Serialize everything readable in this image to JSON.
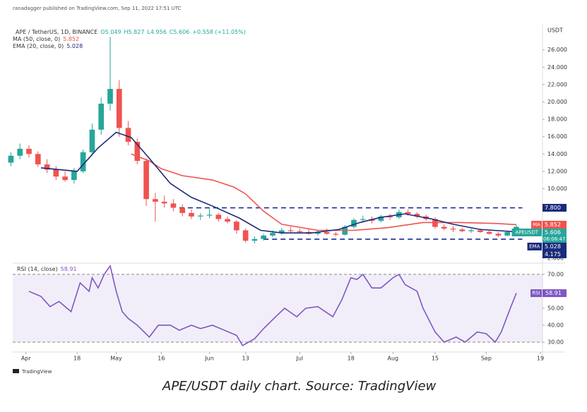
{
  "header": {
    "published": "ranadagger published on TradingView.com, Sep 11, 2022 17:51 UTC",
    "symbol": "APE / TetherUS, 1D, BINANCE",
    "ohlc": [
      "O5.049",
      "H5.827",
      "L4.956",
      "C5.606",
      "+0.558 (+11.05%)"
    ],
    "ma_legend": "MA (50, close, 0)",
    "ma_value": "5.852",
    "ema_legend": "EMA (20, close, 0)",
    "ema_value": "5.028"
  },
  "chart_data": [
    {
      "type": "candlestick",
      "currency": "USDT",
      "up_color": "#26a69a",
      "down_color": "#ef5350",
      "x": [
        -5,
        -2,
        1,
        4,
        7,
        10,
        13,
        16,
        19,
        22,
        25,
        28,
        31,
        34,
        37,
        40,
        43,
        46,
        49,
        52,
        55,
        58,
        61,
        64,
        67,
        70,
        73,
        76,
        79,
        82,
        85,
        88,
        91,
        94,
        97,
        100,
        103,
        106,
        109,
        112,
        115,
        118,
        121,
        124,
        127,
        130,
        133,
        136,
        139,
        142,
        145,
        148,
        151,
        154,
        157,
        160,
        163
      ],
      "open": [
        13.0,
        13.8,
        14.6,
        14.0,
        12.8,
        12.2,
        11.4,
        11.0,
        12.0,
        14.2,
        16.8,
        19.8,
        21.5,
        17.0,
        15.4,
        13.2,
        8.8,
        8.5,
        8.3,
        7.8,
        7.2,
        6.8,
        6.9,
        7.0,
        6.5,
        6.2,
        5.2,
        4.0,
        4.2,
        4.6,
        4.9,
        5.2,
        5.1,
        5.0,
        4.8,
        5.0,
        4.8,
        4.7,
        5.6,
        6.4,
        6.5,
        6.3,
        6.8,
        6.7,
        7.3,
        7.1,
        6.8,
        6.5,
        5.6,
        5.4,
        5.3,
        5.1,
        5.2,
        5.0,
        4.8,
        4.6,
        5.049
      ],
      "high": [
        14.2,
        15.2,
        15.0,
        14.3,
        13.4,
        12.6,
        12.0,
        12.4,
        14.5,
        17.5,
        20.5,
        27.5,
        22.5,
        17.8,
        15.8,
        13.5,
        9.5,
        9.2,
        8.8,
        8.2,
        7.6,
        7.2,
        7.8,
        7.2,
        6.8,
        6.4,
        5.4,
        4.5,
        4.8,
        5.2,
        5.5,
        5.6,
        5.4,
        5.3,
        5.2,
        5.4,
        5.0,
        5.8,
        6.6,
        6.9,
        6.8,
        7.0,
        7.1,
        7.6,
        7.6,
        7.3,
        7.0,
        6.7,
        5.9,
        5.7,
        5.5,
        5.4,
        5.4,
        5.2,
        5.0,
        5.1,
        5.827
      ],
      "low": [
        12.6,
        13.4,
        13.6,
        12.5,
        11.8,
        11.0,
        10.8,
        10.6,
        11.8,
        13.8,
        16.2,
        19.0,
        16.0,
        15.0,
        12.8,
        8.0,
        6.2,
        7.8,
        7.4,
        6.8,
        6.5,
        6.4,
        6.6,
        6.2,
        6.0,
        4.8,
        3.8,
        3.7,
        4.0,
        4.4,
        4.7,
        4.9,
        4.8,
        4.7,
        4.6,
        4.7,
        4.5,
        4.6,
        5.4,
        6.1,
        6.0,
        6.1,
        6.4,
        6.5,
        6.9,
        6.6,
        6.3,
        5.4,
        5.2,
        5.0,
        5.0,
        4.9,
        4.9,
        4.7,
        4.4,
        4.5,
        4.956
      ],
      "close": [
        13.8,
        14.6,
        14.0,
        12.8,
        12.2,
        11.4,
        11.0,
        12.0,
        14.2,
        16.8,
        19.8,
        21.5,
        17.0,
        15.4,
        13.2,
        8.8,
        8.5,
        8.3,
        7.8,
        7.2,
        6.8,
        6.9,
        7.0,
        6.5,
        6.2,
        5.2,
        4.0,
        4.2,
        4.6,
        4.9,
        5.2,
        5.1,
        5.0,
        4.8,
        5.0,
        4.8,
        4.7,
        5.6,
        6.4,
        6.5,
        6.3,
        6.8,
        6.7,
        7.3,
        7.1,
        6.8,
        6.5,
        5.6,
        5.4,
        5.3,
        5.1,
        5.2,
        5.0,
        4.8,
        4.6,
        5.0,
        5.606
      ],
      "series": [
        {
          "name": "MA",
          "color": "#ef5350",
          "x": [
            35,
            41,
            45,
            52,
            62,
            69,
            73,
            79,
            85,
            97,
            109,
            120,
            132,
            144,
            156,
            163
          ],
          "values": [
            14.0,
            13.2,
            12.3,
            11.5,
            11.0,
            10.2,
            9.4,
            7.4,
            5.9,
            5.2,
            5.2,
            5.5,
            6.1,
            6.1,
            6.0,
            5.852
          ]
        },
        {
          "name": "EMA",
          "color": "#1a2a7a",
          "x": [
            5,
            17,
            24,
            30,
            35,
            41,
            48,
            55,
            62,
            71,
            78,
            85,
            95,
            104,
            111,
            118,
            126,
            135,
            142,
            151,
            163
          ],
          "values": [
            12.4,
            12.0,
            14.7,
            16.5,
            15.9,
            13.5,
            10.6,
            9.0,
            8.0,
            6.6,
            5.2,
            4.9,
            4.9,
            5.3,
            6.1,
            6.7,
            7.1,
            6.5,
            5.9,
            5.3,
            5.028
          ]
        }
      ],
      "levels": [
        {
          "value": 7.8,
          "x_start": 51,
          "x_end": 165
        },
        {
          "value": 4.175,
          "x_start": 79,
          "x_end": 165
        }
      ],
      "price_tags": [
        {
          "value": 7.8,
          "label": "7.800",
          "color": "#1a2a7a"
        },
        {
          "name": "MA",
          "value": 5.852,
          "label": "5.852",
          "color": "#ef5350"
        },
        {
          "name": "APEUSDT",
          "value": 5.606,
          "label": "5.606",
          "countdown": "06:08:47",
          "color": "#26a69a"
        },
        {
          "name": "EMA",
          "value": 5.028,
          "label": "5.028",
          "color": "#1a2a7a"
        },
        {
          "value": 4.175,
          "label": "4.175",
          "color": "#1a2a7a"
        }
      ],
      "xlim": [
        -4.4,
        171.7
      ],
      "xticks": [
        {
          "value": 0,
          "label": "Apr"
        },
        {
          "value": 17,
          "label": "18"
        },
        {
          "value": 30,
          "label": "May"
        },
        {
          "value": 45,
          "label": "16"
        },
        {
          "value": 61,
          "label": "Jun"
        },
        {
          "value": 73,
          "label": "13"
        },
        {
          "value": 91,
          "label": "Jul"
        },
        {
          "value": 108,
          "label": "18"
        },
        {
          "value": 122,
          "label": "Aug"
        },
        {
          "value": 136,
          "label": "15"
        },
        {
          "value": 153,
          "label": "Sep"
        },
        {
          "value": 171,
          "label": "19"
        }
      ],
      "ylim": [
        1.5,
        28.9
      ],
      "yticks": [
        {
          "value": 2,
          "label": "2.000"
        },
        {
          "value": 10,
          "label": "10.000"
        },
        {
          "value": 12,
          "label": "12.000"
        },
        {
          "value": 14,
          "label": "14.000"
        },
        {
          "value": 16,
          "label": "16.000"
        },
        {
          "value": 18,
          "label": "18.000"
        },
        {
          "value": 20,
          "label": "20.000"
        },
        {
          "value": 22,
          "label": "22.000"
        },
        {
          "value": 24,
          "label": "24.000"
        },
        {
          "value": 26,
          "label": "26.000"
        }
      ]
    },
    {
      "type": "line",
      "title": "RSI (14, close)",
      "value_text": "58.91",
      "band": [
        30,
        70
      ],
      "band_color": "#7e57c2",
      "series": [
        {
          "name": "RSI",
          "color": "#7e57c2",
          "x": [
            1,
            5,
            8,
            11,
            15,
            18,
            21,
            22,
            24,
            26,
            28,
            30,
            32,
            34,
            37,
            41,
            44,
            48,
            51,
            55,
            58,
            62,
            66,
            70,
            72,
            76,
            79,
            83,
            86,
            90,
            93,
            97,
            102,
            105,
            108,
            110,
            112,
            115,
            118,
            122,
            124,
            126,
            130,
            132,
            136,
            139,
            143,
            146,
            150,
            153,
            156,
            158,
            161,
            163
          ],
          "values": [
            60,
            57,
            51,
            54,
            48,
            65,
            60,
            68,
            62,
            70,
            75,
            60,
            48,
            44,
            40,
            33,
            40,
            40,
            37,
            40,
            38,
            40,
            37,
            34,
            28,
            32,
            38,
            45,
            50,
            45,
            50,
            51,
            45,
            55,
            68,
            67,
            70,
            62,
            62,
            68,
            70,
            64,
            60,
            50,
            36,
            30,
            33,
            30,
            36,
            35,
            30,
            36,
            50,
            58.91
          ]
        }
      ],
      "tag": {
        "name": "RSI",
        "value": 58.91,
        "label": "58.91"
      },
      "ylim": [
        25,
        75.8
      ],
      "yticks": [
        {
          "value": 30,
          "label": "30.00"
        },
        {
          "value": 40,
          "label": "40.00"
        },
        {
          "value": 50,
          "label": "50.00"
        },
        {
          "value": 70,
          "label": "70.00"
        }
      ]
    }
  ],
  "footer": {
    "logo": "TradingView",
    "caption": "APE/USDT daily chart. Source: TradingView"
  }
}
